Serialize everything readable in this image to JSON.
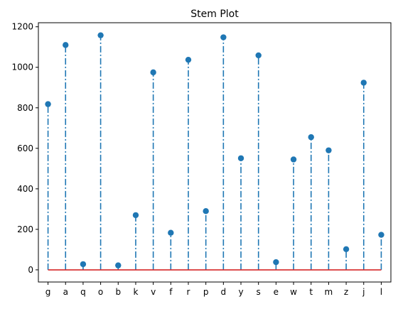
{
  "chart_data": {
    "type": "stem",
    "title": "Stem Plot",
    "xlabel": "",
    "ylabel": "",
    "categories": [
      "g",
      "a",
      "q",
      "o",
      "b",
      "k",
      "v",
      "f",
      "r",
      "p",
      "d",
      "y",
      "s",
      "e",
      "w",
      "t",
      "m",
      "z",
      "j",
      "l"
    ],
    "values": [
      818,
      1110,
      28,
      1158,
      22,
      270,
      975,
      183,
      1037,
      290,
      1148,
      551,
      1059,
      38,
      545,
      655,
      590,
      102,
      924,
      173
    ],
    "ylim": [
      -60,
      1220
    ],
    "yticks": [
      0,
      200,
      400,
      600,
      800,
      1000,
      1200
    ],
    "grid": false,
    "colors": {
      "stem": "#1f77b4",
      "marker": "#1f77b4",
      "baseline": "#d62728"
    }
  }
}
